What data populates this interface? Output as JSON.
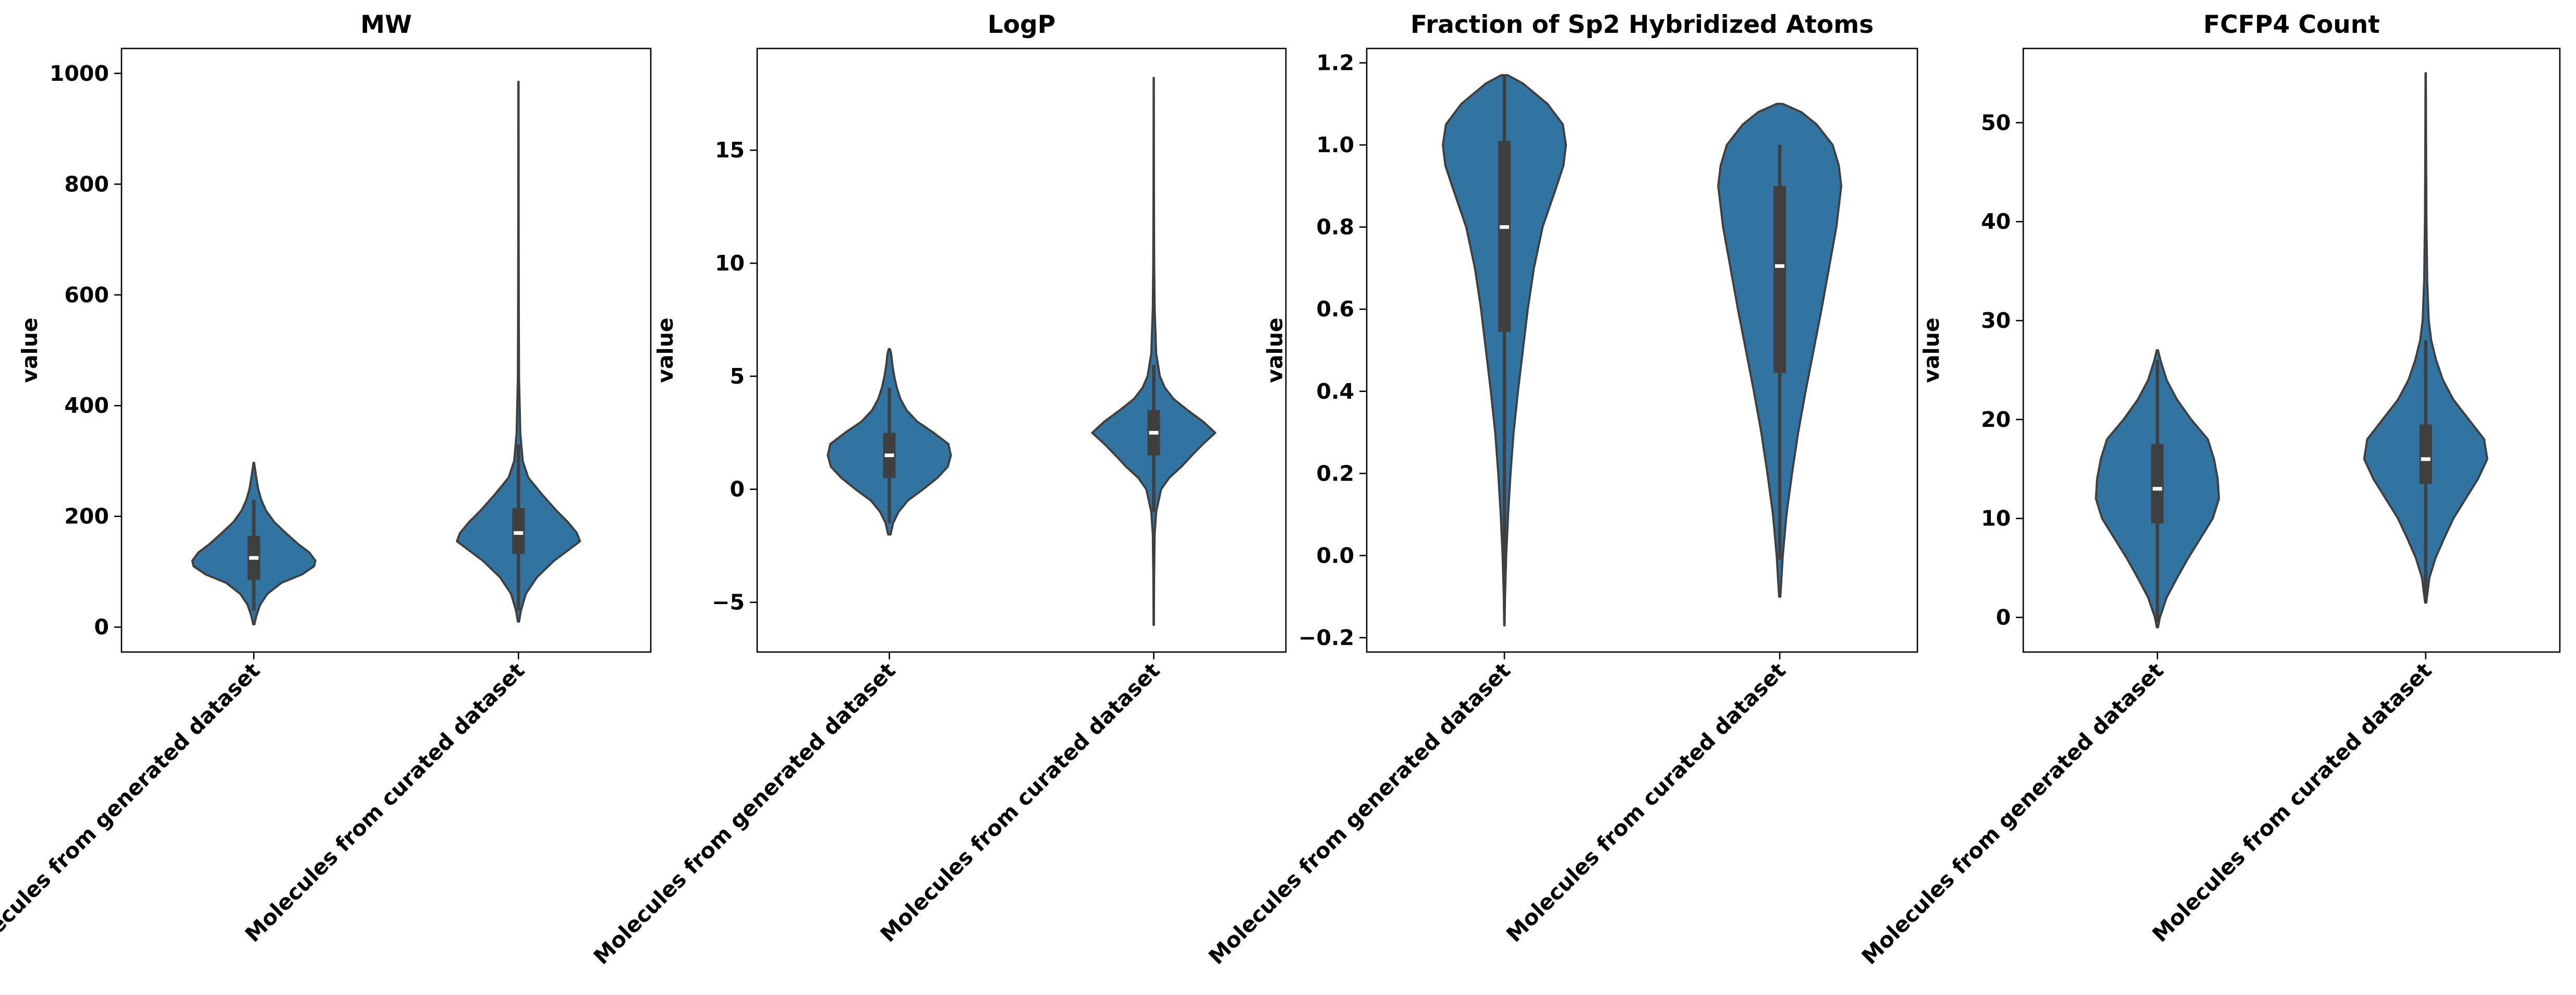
{
  "chart_data": [
    {
      "type": "violin",
      "title": "MW",
      "xlabel": "",
      "ylabel": "value",
      "ylim": [
        -45,
        1045
      ],
      "yticks": [
        0,
        200,
        400,
        600,
        800,
        1000
      ],
      "categories": [
        "Molecules from generated dataset",
        "Molecules from curated dataset"
      ],
      "series": [
        {
          "category": "Molecules from generated dataset",
          "min": 5,
          "max": 297,
          "q1": 85,
          "median": 125,
          "q3": 165,
          "whisker_low": 30,
          "whisker_high": 230,
          "profile": [
            [
              5,
              0.01
            ],
            [
              20,
              0.04
            ],
            [
              40,
              0.1
            ],
            [
              60,
              0.22
            ],
            [
              80,
              0.45
            ],
            [
              95,
              0.78
            ],
            [
              110,
              0.98
            ],
            [
              120,
              1.0
            ],
            [
              135,
              0.9
            ],
            [
              150,
              0.72
            ],
            [
              170,
              0.52
            ],
            [
              190,
              0.33
            ],
            [
              210,
              0.2
            ],
            [
              230,
              0.12
            ],
            [
              250,
              0.07
            ],
            [
              270,
              0.04
            ],
            [
              285,
              0.02
            ],
            [
              297,
              0.005
            ]
          ]
        },
        {
          "category": "Molecules from curated dataset",
          "min": 10,
          "max": 985,
          "q1": 132,
          "median": 170,
          "q3": 215,
          "whisker_low": 30,
          "whisker_high": 330,
          "profile": [
            [
              10,
              0.01
            ],
            [
              30,
              0.04
            ],
            [
              60,
              0.12
            ],
            [
              90,
              0.3
            ],
            [
              120,
              0.58
            ],
            [
              140,
              0.82
            ],
            [
              155,
              1.0
            ],
            [
              170,
              0.95
            ],
            [
              190,
              0.8
            ],
            [
              210,
              0.62
            ],
            [
              240,
              0.38
            ],
            [
              270,
              0.16
            ],
            [
              300,
              0.07
            ],
            [
              350,
              0.03
            ],
            [
              400,
              0.02
            ],
            [
              450,
              0.01
            ],
            [
              550,
              0.006
            ],
            [
              700,
              0.004
            ],
            [
              850,
              0.003
            ],
            [
              985,
              0.002
            ]
          ]
        }
      ]
    },
    {
      "type": "violin",
      "title": "LogP",
      "xlabel": "",
      "ylabel": "value",
      "ylim": [
        -7.2,
        19.5
      ],
      "yticks": [
        -5,
        0,
        5,
        10,
        15
      ],
      "categories": [
        "Molecules from generated dataset",
        "Molecules from curated dataset"
      ],
      "series": [
        {
          "category": "Molecules from generated dataset",
          "min": -2,
          "max": 6.2,
          "q1": 0.5,
          "median": 1.5,
          "q3": 2.5,
          "whisker_low": -1.5,
          "whisker_high": 4.5,
          "profile": [
            [
              -2,
              0.02
            ],
            [
              -1.5,
              0.06
            ],
            [
              -1,
              0.15
            ],
            [
              -0.5,
              0.3
            ],
            [
              0,
              0.55
            ],
            [
              0.5,
              0.78
            ],
            [
              1,
              0.95
            ],
            [
              1.5,
              1.0
            ],
            [
              2,
              0.96
            ],
            [
              2.5,
              0.72
            ],
            [
              3,
              0.45
            ],
            [
              3.5,
              0.28
            ],
            [
              4,
              0.18
            ],
            [
              4.5,
              0.12
            ],
            [
              5,
              0.08
            ],
            [
              5.5,
              0.05
            ],
            [
              6,
              0.03
            ],
            [
              6.2,
              0.01
            ]
          ]
        },
        {
          "category": "Molecules from curated dataset",
          "min": -6,
          "max": 18.2,
          "q1": 1.5,
          "median": 2.5,
          "q3": 3.5,
          "whisker_low": -1.0,
          "whisker_high": 5.5,
          "profile": [
            [
              -6,
              0.003
            ],
            [
              -4,
              0.006
            ],
            [
              -2,
              0.015
            ],
            [
              -1,
              0.04
            ],
            [
              0,
              0.12
            ],
            [
              0.5,
              0.25
            ],
            [
              1,
              0.45
            ],
            [
              1.5,
              0.62
            ],
            [
              2,
              0.8
            ],
            [
              2.5,
              1.0
            ],
            [
              3,
              0.8
            ],
            [
              3.5,
              0.55
            ],
            [
              4,
              0.32
            ],
            [
              4.5,
              0.18
            ],
            [
              5,
              0.1
            ],
            [
              6,
              0.04
            ],
            [
              8,
              0.015
            ],
            [
              10,
              0.008
            ],
            [
              13,
              0.004
            ],
            [
              18.2,
              0.002
            ]
          ]
        }
      ]
    },
    {
      "type": "violin",
      "title": "Fraction of Sp2 Hybridized Atoms",
      "xlabel": "",
      "ylabel": "value",
      "ylim": [
        -0.235,
        1.235
      ],
      "yticks": [
        -0.2,
        0.0,
        0.2,
        0.4,
        0.6,
        0.8,
        1.0,
        1.2
      ],
      "categories": [
        "Molecules from generated dataset",
        "Molecules from curated dataset"
      ],
      "series": [
        {
          "category": "Molecules from generated dataset",
          "min": -0.17,
          "max": 1.17,
          "q1": 0.545,
          "median": 0.8,
          "q3": 1.01,
          "whisker_low": -0.05,
          "whisker_high": 1.17,
          "profile": [
            [
              -0.17,
              0.003
            ],
            [
              -0.1,
              0.01
            ],
            [
              0,
              0.03
            ],
            [
              0.1,
              0.06
            ],
            [
              0.2,
              0.1
            ],
            [
              0.3,
              0.15
            ],
            [
              0.4,
              0.22
            ],
            [
              0.5,
              0.3
            ],
            [
              0.6,
              0.38
            ],
            [
              0.7,
              0.48
            ],
            [
              0.8,
              0.62
            ],
            [
              0.9,
              0.85
            ],
            [
              0.95,
              0.96
            ],
            [
              1.0,
              1.0
            ],
            [
              1.05,
              0.95
            ],
            [
              1.1,
              0.7
            ],
            [
              1.15,
              0.3
            ],
            [
              1.17,
              0.05
            ]
          ]
        },
        {
          "category": "Molecules from curated dataset",
          "min": -0.1,
          "max": 1.1,
          "q1": 0.445,
          "median": 0.705,
          "q3": 0.9,
          "whisker_low": -0.01,
          "whisker_high": 1.0,
          "profile": [
            [
              -0.1,
              0.01
            ],
            [
              0,
              0.05
            ],
            [
              0.1,
              0.11
            ],
            [
              0.2,
              0.2
            ],
            [
              0.3,
              0.3
            ],
            [
              0.4,
              0.42
            ],
            [
              0.5,
              0.55
            ],
            [
              0.6,
              0.68
            ],
            [
              0.7,
              0.8
            ],
            [
              0.8,
              0.92
            ],
            [
              0.9,
              1.0
            ],
            [
              0.95,
              0.96
            ],
            [
              1.0,
              0.86
            ],
            [
              1.05,
              0.6
            ],
            [
              1.08,
              0.35
            ],
            [
              1.1,
              0.05
            ]
          ]
        }
      ]
    },
    {
      "type": "violin",
      "title": "FCFP4 Count",
      "xlabel": "",
      "ylabel": "value",
      "ylim": [
        -3.5,
        57.5
      ],
      "yticks": [
        0,
        10,
        20,
        30,
        40,
        50
      ],
      "categories": [
        "Molecules from generated dataset",
        "Molecules from curated dataset"
      ],
      "series": [
        {
          "category": "Molecules from generated dataset",
          "min": -1,
          "max": 27,
          "q1": 9.5,
          "median": 13,
          "q3": 17.5,
          "whisker_low": -0.5,
          "whisker_high": 26,
          "profile": [
            [
              -1,
              0.01
            ],
            [
              0,
              0.04
            ],
            [
              2,
              0.15
            ],
            [
              4,
              0.32
            ],
            [
              6,
              0.5
            ],
            [
              8,
              0.7
            ],
            [
              10,
              0.9
            ],
            [
              12,
              1.0
            ],
            [
              14,
              0.98
            ],
            [
              16,
              0.92
            ],
            [
              18,
              0.82
            ],
            [
              20,
              0.55
            ],
            [
              22,
              0.32
            ],
            [
              24,
              0.15
            ],
            [
              26,
              0.05
            ],
            [
              27,
              0.01
            ]
          ]
        },
        {
          "category": "Molecules from curated dataset",
          "min": 1.5,
          "max": 55,
          "q1": 13.5,
          "median": 16,
          "q3": 19.5,
          "whisker_low": 2,
          "whisker_high": 28,
          "profile": [
            [
              1.5,
              0.01
            ],
            [
              4,
              0.06
            ],
            [
              6,
              0.16
            ],
            [
              8,
              0.3
            ],
            [
              10,
              0.45
            ],
            [
              12,
              0.65
            ],
            [
              14,
              0.85
            ],
            [
              16,
              1.0
            ],
            [
              18,
              0.95
            ],
            [
              20,
              0.7
            ],
            [
              22,
              0.45
            ],
            [
              24,
              0.28
            ],
            [
              26,
              0.17
            ],
            [
              28,
              0.09
            ],
            [
              30,
              0.05
            ],
            [
              34,
              0.025
            ],
            [
              40,
              0.012
            ],
            [
              48,
              0.006
            ],
            [
              55,
              0.003
            ]
          ]
        }
      ]
    }
  ],
  "colors": {
    "violin_fill": "#3274a1",
    "box": "#3f3f3f",
    "median": "#ffffff",
    "axis": "#000000"
  }
}
